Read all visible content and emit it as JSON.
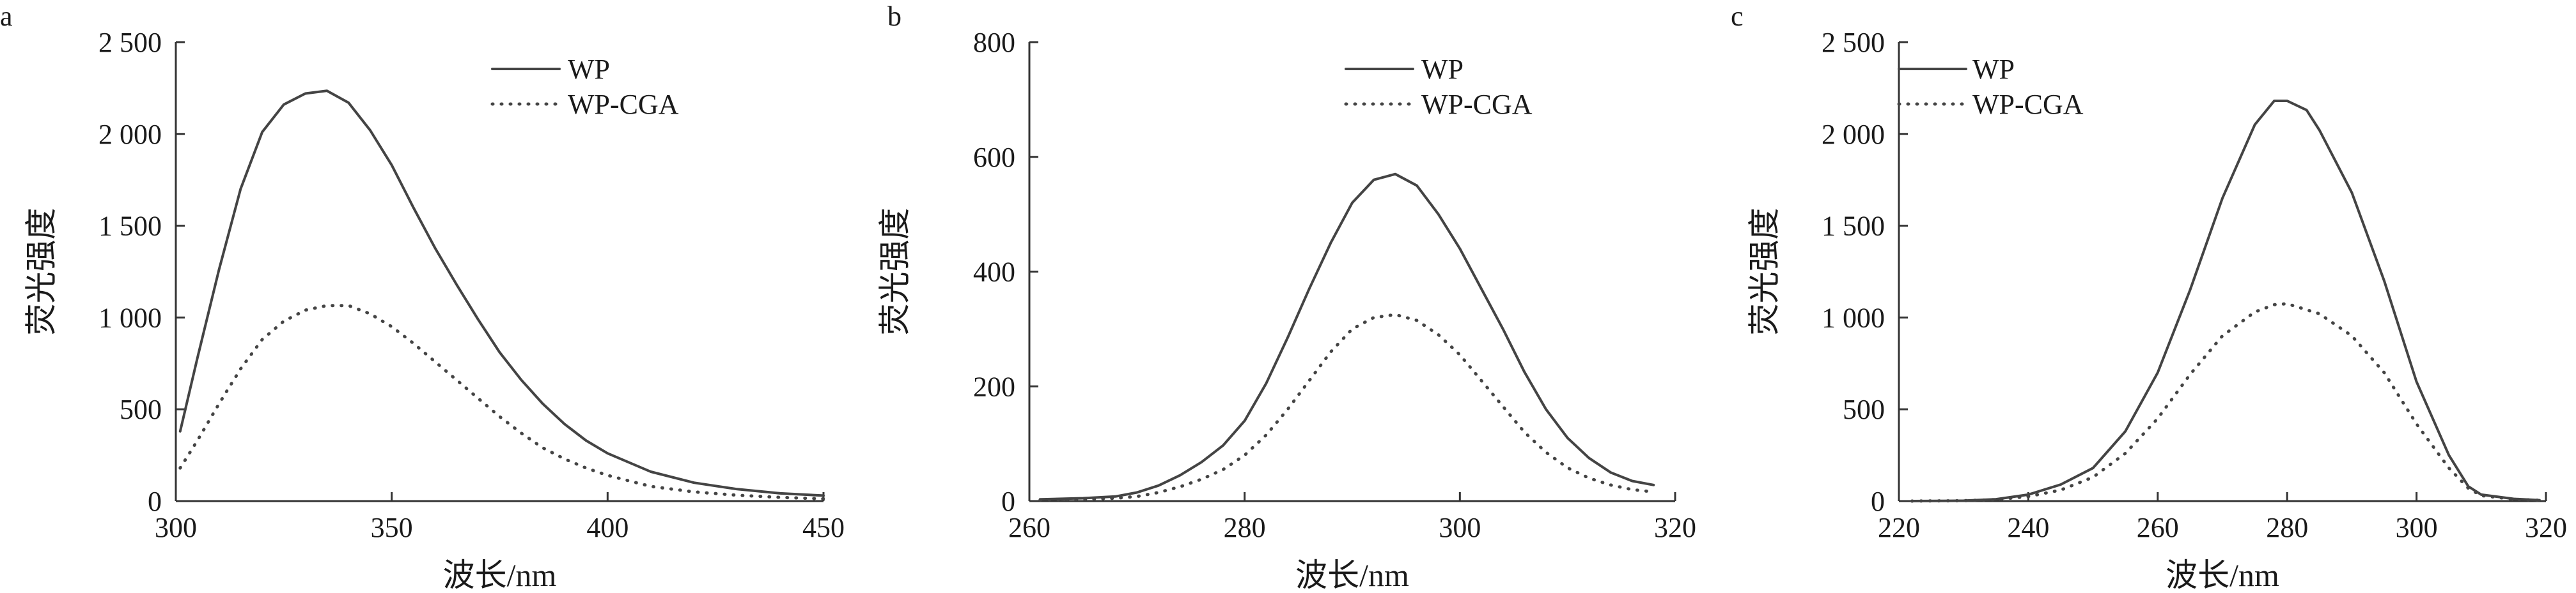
{
  "chart_data": [
    {
      "type": "line",
      "panel_label": "a",
      "xlabel": "波长/nm",
      "ylabel": "荧光强度",
      "xlim": [
        300,
        450
      ],
      "ylim": [
        0,
        2500
      ],
      "x_ticks": [
        300,
        350,
        400,
        450
      ],
      "x_tick_labels": [
        "300",
        "350",
        "400",
        "450"
      ],
      "y_ticks": [
        0,
        500,
        1000,
        1500,
        2000,
        2500
      ],
      "y_tick_labels": [
        "0",
        "500",
        "1 000",
        "1 500",
        "2 000",
        "2 500"
      ],
      "legend_position": "top-right",
      "series": [
        {
          "name": "WP",
          "style": "solid",
          "points": [
            [
              301,
              380
            ],
            [
              305,
              780
            ],
            [
              310,
              1260
            ],
            [
              315,
              1700
            ],
            [
              320,
              2010
            ],
            [
              325,
              2160
            ],
            [
              330,
              2220
            ],
            [
              335,
              2235
            ],
            [
              340,
              2170
            ],
            [
              345,
              2020
            ],
            [
              350,
              1830
            ],
            [
              355,
              1600
            ],
            [
              360,
              1380
            ],
            [
              365,
              1180
            ],
            [
              370,
              990
            ],
            [
              375,
              810
            ],
            [
              380,
              660
            ],
            [
              385,
              530
            ],
            [
              390,
              420
            ],
            [
              395,
              330
            ],
            [
              400,
              260
            ],
            [
              410,
              160
            ],
            [
              420,
              100
            ],
            [
              430,
              65
            ],
            [
              440,
              42
            ],
            [
              450,
              30
            ]
          ]
        },
        {
          "name": "WP-CGA",
          "style": "dotted",
          "points": [
            [
              301,
              180
            ],
            [
              305,
              330
            ],
            [
              310,
              530
            ],
            [
              315,
              720
            ],
            [
              320,
              880
            ],
            [
              325,
              980
            ],
            [
              330,
              1040
            ],
            [
              335,
              1065
            ],
            [
              340,
              1065
            ],
            [
              345,
              1020
            ],
            [
              350,
              950
            ],
            [
              355,
              860
            ],
            [
              360,
              760
            ],
            [
              365,
              660
            ],
            [
              370,
              560
            ],
            [
              375,
              460
            ],
            [
              380,
              370
            ],
            [
              385,
              290
            ],
            [
              390,
              230
            ],
            [
              395,
              180
            ],
            [
              400,
              140
            ],
            [
              410,
              80
            ],
            [
              420,
              50
            ],
            [
              430,
              32
            ],
            [
              440,
              20
            ],
            [
              450,
              12
            ]
          ]
        }
      ]
    },
    {
      "type": "line",
      "panel_label": "b",
      "xlabel": "波长/nm",
      "ylabel": "荧光强度",
      "xlim": [
        260,
        320
      ],
      "ylim": [
        0,
        800
      ],
      "x_ticks": [
        260,
        280,
        300,
        320
      ],
      "x_tick_labels": [
        "260",
        "280",
        "300",
        "320"
      ],
      "y_ticks": [
        0,
        200,
        400,
        600,
        800
      ],
      "y_tick_labels": [
        "0",
        "200",
        "400",
        "600",
        "800"
      ],
      "legend_position": "top-right",
      "series": [
        {
          "name": "WP",
          "style": "solid",
          "points": [
            [
              261,
              3
            ],
            [
              265,
              5
            ],
            [
              268,
              8
            ],
            [
              270,
              15
            ],
            [
              272,
              27
            ],
            [
              274,
              45
            ],
            [
              276,
              68
            ],
            [
              278,
              97
            ],
            [
              280,
              140
            ],
            [
              282,
              205
            ],
            [
              284,
              285
            ],
            [
              286,
              370
            ],
            [
              288,
              450
            ],
            [
              290,
              520
            ],
            [
              292,
              560
            ],
            [
              294,
              570
            ],
            [
              296,
              550
            ],
            [
              298,
              500
            ],
            [
              300,
              440
            ],
            [
              302,
              370
            ],
            [
              304,
              300
            ],
            [
              306,
              225
            ],
            [
              308,
              160
            ],
            [
              310,
              110
            ],
            [
              312,
              75
            ],
            [
              314,
              50
            ],
            [
              316,
              35
            ],
            [
              318,
              28
            ]
          ]
        },
        {
          "name": "WP-CGA",
          "style": "dotted",
          "points": [
            [
              261,
              2
            ],
            [
              265,
              3
            ],
            [
              268,
              5
            ],
            [
              270,
              8
            ],
            [
              272,
              15
            ],
            [
              274,
              25
            ],
            [
              276,
              38
            ],
            [
              278,
              55
            ],
            [
              280,
              80
            ],
            [
              282,
              115
            ],
            [
              284,
              160
            ],
            [
              286,
              210
            ],
            [
              288,
              260
            ],
            [
              290,
              300
            ],
            [
              292,
              320
            ],
            [
              294,
              325
            ],
            [
              296,
              315
            ],
            [
              298,
              290
            ],
            [
              300,
              255
            ],
            [
              302,
              210
            ],
            [
              304,
              165
            ],
            [
              306,
              120
            ],
            [
              308,
              85
            ],
            [
              310,
              58
            ],
            [
              312,
              40
            ],
            [
              314,
              28
            ],
            [
              316,
              20
            ],
            [
              318,
              16
            ]
          ]
        }
      ]
    },
    {
      "type": "line",
      "panel_label": "c",
      "xlabel": "波长/nm",
      "ylabel": "荧光强度",
      "xlim": [
        220,
        320
      ],
      "ylim": [
        0,
        2500
      ],
      "x_ticks": [
        220,
        240,
        260,
        280,
        300,
        320
      ],
      "x_tick_labels": [
        "220",
        "240",
        "260",
        "280",
        "300",
        "320"
      ],
      "y_ticks": [
        0,
        500,
        1000,
        1500,
        2000,
        2500
      ],
      "y_tick_labels": [
        "0",
        "500",
        "1 000",
        "1 500",
        "2 000",
        "2 500"
      ],
      "legend_position": "top-left",
      "series": [
        {
          "name": "WP",
          "style": "solid",
          "points": [
            [
              222,
              0
            ],
            [
              230,
              2
            ],
            [
              235,
              10
            ],
            [
              240,
              35
            ],
            [
              245,
              90
            ],
            [
              250,
              180
            ],
            [
              255,
              380
            ],
            [
              260,
              700
            ],
            [
              265,
              1150
            ],
            [
              270,
              1650
            ],
            [
              275,
              2050
            ],
            [
              278,
              2180
            ],
            [
              280,
              2180
            ],
            [
              283,
              2130
            ],
            [
              285,
              2020
            ],
            [
              290,
              1680
            ],
            [
              295,
              1200
            ],
            [
              300,
              650
            ],
            [
              305,
              250
            ],
            [
              308,
              80
            ],
            [
              310,
              35
            ],
            [
              315,
              12
            ],
            [
              319,
              5
            ]
          ]
        },
        {
          "name": "WP-CGA",
          "style": "dotted",
          "points": [
            [
              222,
              0
            ],
            [
              230,
              2
            ],
            [
              235,
              8
            ],
            [
              240,
              25
            ],
            [
              245,
              60
            ],
            [
              250,
              130
            ],
            [
              255,
              260
            ],
            [
              260,
              450
            ],
            [
              265,
              690
            ],
            [
              270,
              900
            ],
            [
              275,
              1030
            ],
            [
              278,
              1070
            ],
            [
              280,
              1075
            ],
            [
              285,
              1020
            ],
            [
              290,
              900
            ],
            [
              295,
              700
            ],
            [
              300,
              420
            ],
            [
              305,
              180
            ],
            [
              308,
              70
            ],
            [
              310,
              30
            ],
            [
              315,
              10
            ],
            [
              319,
              4
            ]
          ]
        }
      ]
    }
  ]
}
